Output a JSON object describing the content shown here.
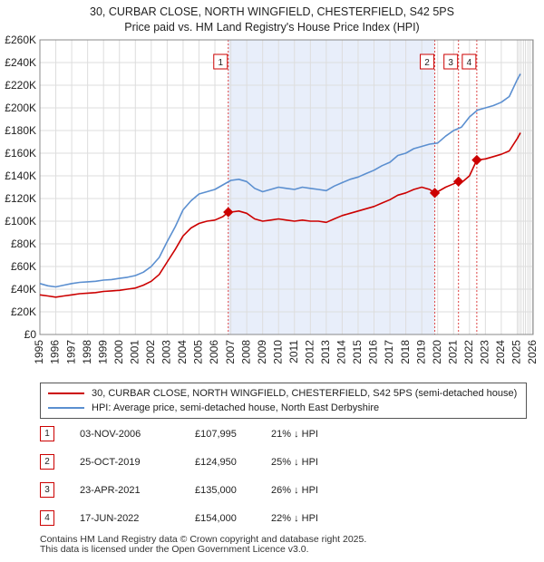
{
  "title_line1": "30, CURBAR CLOSE, NORTH WINGFIELD, CHESTERFIELD, S42 5PS",
  "title_line2": "Price paid vs. HM Land Registry's House Price Index (HPI)",
  "legend": {
    "property": "30, CURBAR CLOSE, NORTH WINGFIELD, CHESTERFIELD, S42 5PS (semi-detached house)",
    "hpi": "HPI: Average price, semi-detached house, North East Derbyshire"
  },
  "colors": {
    "property": "#cc0000",
    "hpi": "#5b8fd0",
    "shade": "#e8eefa",
    "grid": "#dddddd"
  },
  "sales": [
    {
      "num": "1",
      "date": "03-NOV-2006",
      "price": "£107,995",
      "hpi_rel": "21% ↓ HPI"
    },
    {
      "num": "2",
      "date": "25-OCT-2019",
      "price": "£124,950",
      "hpi_rel": "25% ↓ HPI"
    },
    {
      "num": "3",
      "date": "23-APR-2021",
      "price": "£135,000",
      "hpi_rel": "26% ↓ HPI"
    },
    {
      "num": "4",
      "date": "17-JUN-2022",
      "price": "£154,000",
      "hpi_rel": "22% ↓ HPI"
    }
  ],
  "footer": {
    "line1": "Contains HM Land Registry data © Crown copyright and database right 2025.",
    "line2": "This data is licensed under the Open Government Licence v3.0."
  },
  "chart_data": {
    "type": "line",
    "title": "Price paid vs. HM Land Registry's House Price Index (HPI)",
    "xlim": [
      1995,
      2026
    ],
    "ylim": [
      0,
      260000
    ],
    "x_ticks": [
      1995,
      1996,
      1997,
      1998,
      1999,
      2000,
      2001,
      2002,
      2003,
      2004,
      2005,
      2006,
      2007,
      2008,
      2009,
      2010,
      2011,
      2012,
      2013,
      2014,
      2015,
      2016,
      2017,
      2018,
      2019,
      2020,
      2021,
      2022,
      2023,
      2024,
      2025,
      2026
    ],
    "y_ticks": [
      0,
      20000,
      40000,
      60000,
      80000,
      100000,
      120000,
      140000,
      160000,
      180000,
      200000,
      220000,
      240000,
      260000
    ],
    "y_tick_labels": [
      "£0",
      "£20K",
      "£40K",
      "£60K",
      "£80K",
      "£100K",
      "£120K",
      "£140K",
      "£160K",
      "£180K",
      "£200K",
      "£220K",
      "£240K",
      "£260K"
    ],
    "shaded_period": [
      2006.84,
      2019.82
    ],
    "forecast_from": 2025.1,
    "series": [
      {
        "name": "HPI: Average price, semi-detached house, North East Derbyshire",
        "x": [
          1995,
          1995.5,
          1996,
          1996.5,
          1997,
          1997.5,
          1998,
          1998.5,
          1999,
          1999.5,
          2000,
          2000.5,
          2001,
          2001.5,
          2002,
          2002.5,
          2003,
          2003.5,
          2004,
          2004.5,
          2005,
          2005.5,
          2006,
          2006.5,
          2007,
          2007.5,
          2008,
          2008.5,
          2009,
          2009.5,
          2010,
          2010.5,
          2011,
          2011.5,
          2012,
          2012.5,
          2013,
          2013.5,
          2014,
          2014.5,
          2015,
          2015.5,
          2016,
          2016.5,
          2017,
          2017.5,
          2018,
          2018.5,
          2019,
          2019.5,
          2020,
          2020.5,
          2021,
          2021.5,
          2022,
          2022.5,
          2023,
          2023.5,
          2024,
          2024.5,
          2025,
          2025.2
        ],
        "values": [
          45000,
          43000,
          42000,
          43500,
          45000,
          46000,
          46500,
          47000,
          48000,
          48500,
          49500,
          50500,
          52000,
          55000,
          60000,
          68000,
          82000,
          95000,
          110000,
          118000,
          124000,
          126000,
          128000,
          132000,
          136000,
          137000,
          135000,
          129000,
          126000,
          128000,
          130000,
          129000,
          128000,
          130000,
          129000,
          128000,
          127000,
          131000,
          134000,
          137000,
          139000,
          142000,
          145000,
          149000,
          152000,
          158000,
          160000,
          164000,
          166000,
          168000,
          169000,
          175000,
          180000,
          183000,
          192000,
          198000,
          200000,
          202000,
          205000,
          210000,
          225000,
          230000
        ]
      },
      {
        "name": "30, CURBAR CLOSE, NORTH WINGFIELD, CHESTERFIELD, S42 5PS (semi-detached house)",
        "x": [
          1995,
          1995.5,
          1996,
          1996.5,
          1997,
          1997.5,
          1998,
          1998.5,
          1999,
          1999.5,
          2000,
          2000.5,
          2001,
          2001.5,
          2002,
          2002.5,
          2003,
          2003.5,
          2004,
          2004.5,
          2005,
          2005.5,
          2006,
          2006.5,
          2006.84,
          2007,
          2007.5,
          2008,
          2008.5,
          2009,
          2009.5,
          2010,
          2010.5,
          2011,
          2011.5,
          2012,
          2012.5,
          2013,
          2013.5,
          2014,
          2014.5,
          2015,
          2015.5,
          2016,
          2016.5,
          2017,
          2017.5,
          2018,
          2018.5,
          2019,
          2019.5,
          2019.82,
          2020,
          2020.5,
          2021,
          2021.31,
          2021.5,
          2022,
          2022.46,
          2022.5,
          2023,
          2023.5,
          2024,
          2024.5,
          2025,
          2025.2
        ],
        "values": [
          35000,
          34000,
          33000,
          34000,
          35000,
          36000,
          36500,
          37000,
          38000,
          38500,
          39000,
          40000,
          41000,
          43500,
          47000,
          53000,
          64000,
          75000,
          87000,
          94000,
          98000,
          100000,
          101000,
          104000,
          107995,
          108000,
          109000,
          107000,
          102000,
          100000,
          101000,
          102000,
          101000,
          100000,
          101000,
          100000,
          100000,
          99000,
          102000,
          105000,
          107000,
          109000,
          111000,
          113000,
          116000,
          119000,
          123000,
          125000,
          128000,
          130000,
          128000,
          124950,
          126000,
          130000,
          133000,
          135000,
          134000,
          140000,
          154000,
          154000,
          155000,
          157000,
          159000,
          162000,
          173000,
          178000
        ]
      }
    ],
    "sale_points": [
      {
        "label": "1",
        "x": 2006.84,
        "y": 107995
      },
      {
        "label": "2",
        "x": 2019.82,
        "y": 124950
      },
      {
        "label": "3",
        "x": 2021.31,
        "y": 135000
      },
      {
        "label": "4",
        "x": 2022.46,
        "y": 154000
      }
    ]
  }
}
